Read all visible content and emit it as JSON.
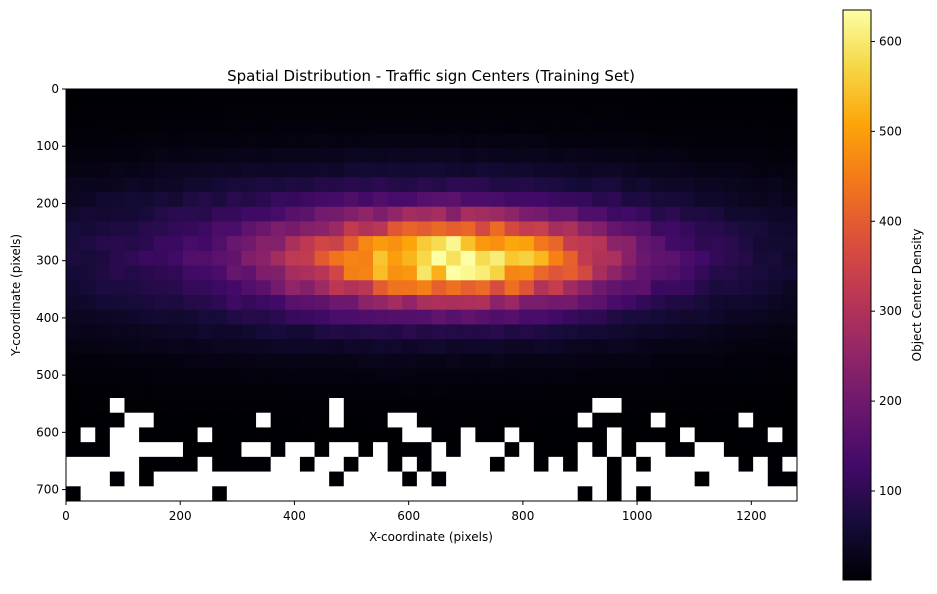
{
  "chart_data": {
    "type": "heatmap",
    "title": "Spatial Distribution - Traffic sign Centers (Training Set)",
    "xlabel": "X-coordinate (pixels)",
    "ylabel": "Y-coordinate (pixels)",
    "xlim": [
      0,
      1280
    ],
    "ylim": [
      720,
      0
    ],
    "x_ticks": [
      0,
      200,
      400,
      600,
      800,
      1000,
      1200
    ],
    "y_ticks": [
      0,
      100,
      200,
      300,
      400,
      500,
      600,
      700
    ],
    "grid": {
      "cols": 50,
      "rows": 28
    },
    "bin_size": {
      "x": 25.6,
      "y": 25.7
    },
    "density_model": {
      "peak_value": 635,
      "peak_center": [
        680,
        300
      ],
      "spread": [
        185,
        52
      ],
      "broad_value": 170,
      "broad_center": [
        600,
        290
      ],
      "broad_spread": [
        430,
        95
      ],
      "empty_bins": "white (no data) concentrated in the bottom band y > 540"
    },
    "colorbar": {
      "label": "Object Center Density",
      "colormap": "inferno",
      "range": [
        1,
        635
      ],
      "ticks": [
        100,
        200,
        300,
        400,
        500,
        600
      ]
    }
  }
}
